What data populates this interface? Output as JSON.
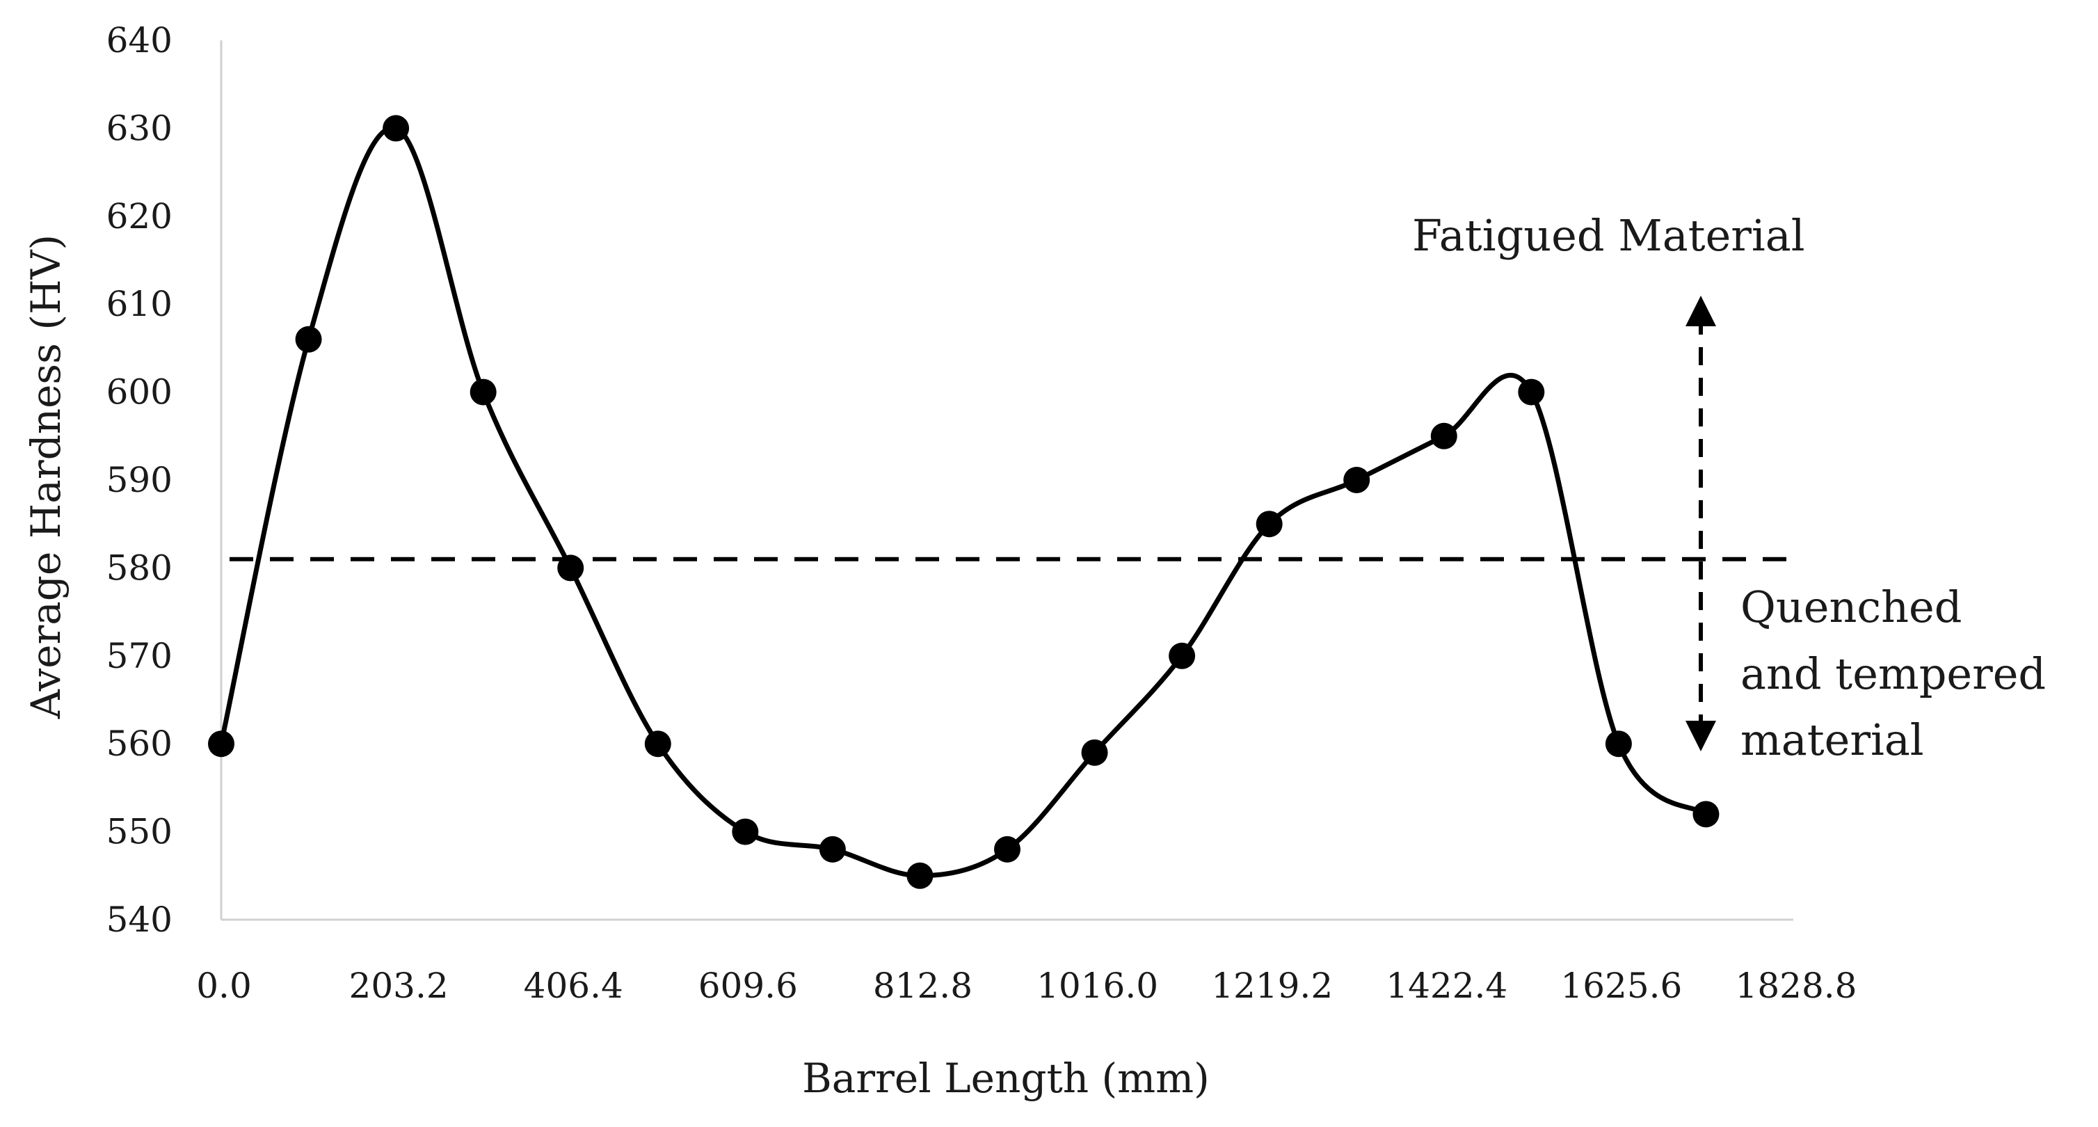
{
  "chart_data": {
    "type": "line",
    "title": "",
    "xlabel": "Barrel Length (mm)",
    "ylabel": "Average Hardness (HV)",
    "xlim": [
      0,
      1828.8
    ],
    "ylim": [
      540,
      640
    ],
    "x_ticks": [
      "0.0",
      "203.2",
      "406.4",
      "609.6",
      "812.8",
      "1016.0",
      "1219.2",
      "1422.4",
      "1625.6",
      "1828.8"
    ],
    "x_tick_values": [
      0,
      203.2,
      406.4,
      609.6,
      812.8,
      1016.0,
      1219.2,
      1422.4,
      1625.6,
      1828.8
    ],
    "y_ticks": [
      "540",
      "550",
      "560",
      "570",
      "580",
      "590",
      "600",
      "610",
      "620",
      "630",
      "640"
    ],
    "y_tick_values": [
      540,
      550,
      560,
      570,
      580,
      590,
      600,
      610,
      620,
      630,
      640
    ],
    "grid": false,
    "smooth": true,
    "series": [
      {
        "color": "#000000",
        "marker": "circle",
        "x": [
          0,
          101.6,
          203.2,
          304.8,
          406.4,
          508.0,
          609.6,
          711.2,
          812.8,
          914.4,
          1016.0,
          1117.6,
          1219.2,
          1320.8,
          1422.4,
          1524.0,
          1625.6,
          1727.2
        ],
        "y": [
          560,
          606,
          630,
          600,
          580,
          560,
          550,
          548,
          545,
          548,
          559,
          570,
          585,
          590,
          595,
          600,
          560,
          552
        ]
      }
    ],
    "reference_line": {
      "y": 581,
      "style": "dashed",
      "color": "#000000"
    },
    "annotations": {
      "fatigued": "Fatigued Material",
      "quenched_lines": [
        "Quenched",
        "and tempered",
        "material"
      ]
    }
  }
}
